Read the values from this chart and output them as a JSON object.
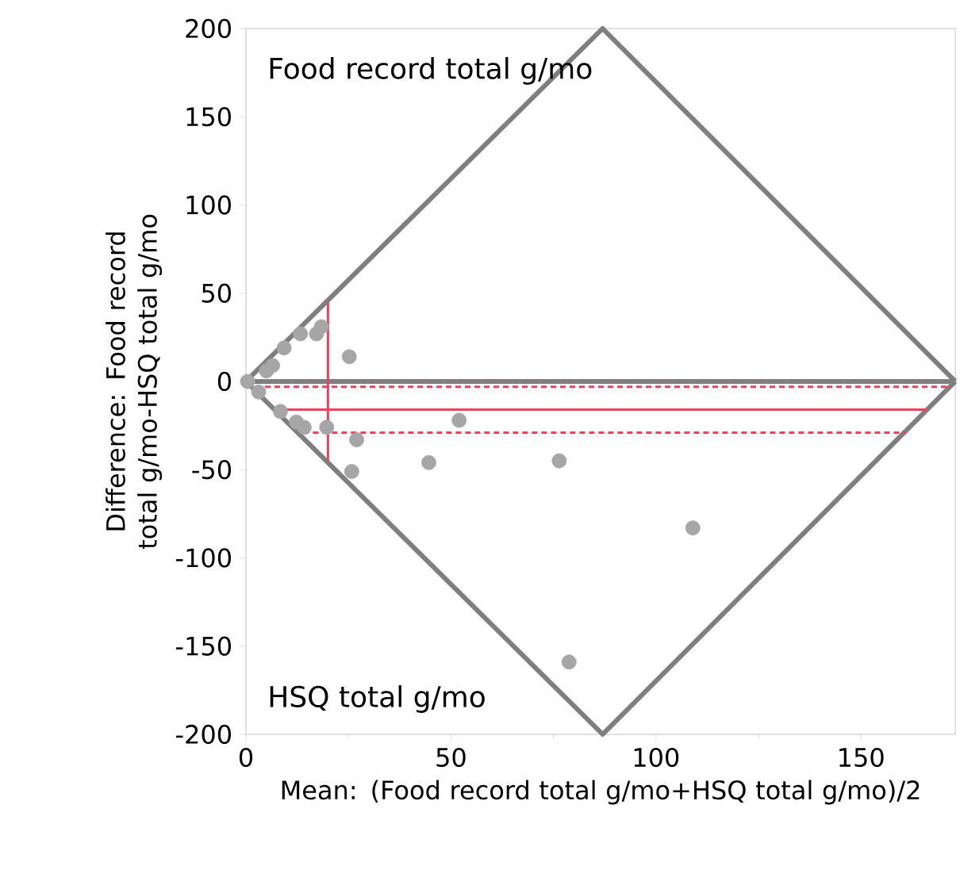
{
  "chart_data": {
    "type": "scatter",
    "xlabel": "Mean: (Food record total g/mo+HSQ total g/mo)/2",
    "ylabel": "Difference: Food record total g/mo-HSQ total g/mo",
    "annotations": [
      "Food record total g/mo",
      "HSQ total g/mo"
    ],
    "xlim": [
      0,
      173
    ],
    "ylim": [
      -200,
      200
    ],
    "xticks": [
      0,
      50,
      100,
      150
    ],
    "yticks": [
      -200,
      -150,
      -100,
      -50,
      0,
      50,
      100,
      150,
      200
    ],
    "ref_lines": [
      {
        "axis": "y",
        "value": 0,
        "color": "#7f7f7f"
      }
    ],
    "series": [
      {
        "color": "#a6a6a6",
        "x": [
          0.4,
          3.1,
          5,
          6.5,
          8.4,
          9.3,
          13.3,
          17.2,
          18.4,
          25.2,
          12.3,
          14.2,
          19.7,
          27,
          25.8,
          44.6,
          52,
          76.4,
          109,
          78.8
        ],
        "values": [
          0,
          -6,
          6,
          9,
          -17,
          19,
          27,
          27,
          31,
          14,
          -23,
          -26,
          -26,
          -33,
          -51,
          -46,
          -22,
          -45,
          -83,
          -159
        ]
      },
      {
        "type": "line",
        "color": "#7f7f7f",
        "line_style": "solid",
        "x": [
          0,
          87,
          173
        ],
        "values": [
          0,
          200,
          0
        ]
      },
      {
        "type": "line",
        "color": "#7f7f7f",
        "line_style": "solid",
        "x": [
          0,
          87,
          173
        ],
        "values": [
          0,
          -200,
          0
        ]
      },
      {
        "type": "line",
        "color": "#f0405a",
        "line_style": "solid",
        "x": [
          7,
          166
        ],
        "values": [
          -16,
          -16
        ]
      },
      {
        "type": "line",
        "color": "#f0405a",
        "line_style": "dashed",
        "x": [
          0,
          172
        ],
        "values": [
          -3,
          -3
        ]
      },
      {
        "type": "line",
        "color": "#f0405a",
        "line_style": "dashed",
        "x": [
          14,
          161
        ],
        "values": [
          -29,
          -29
        ]
      },
      {
        "type": "line",
        "color": "#f0405a",
        "line_style": "solid",
        "x": [
          20,
          20
        ],
        "values": [
          45,
          -45
        ]
      }
    ]
  }
}
